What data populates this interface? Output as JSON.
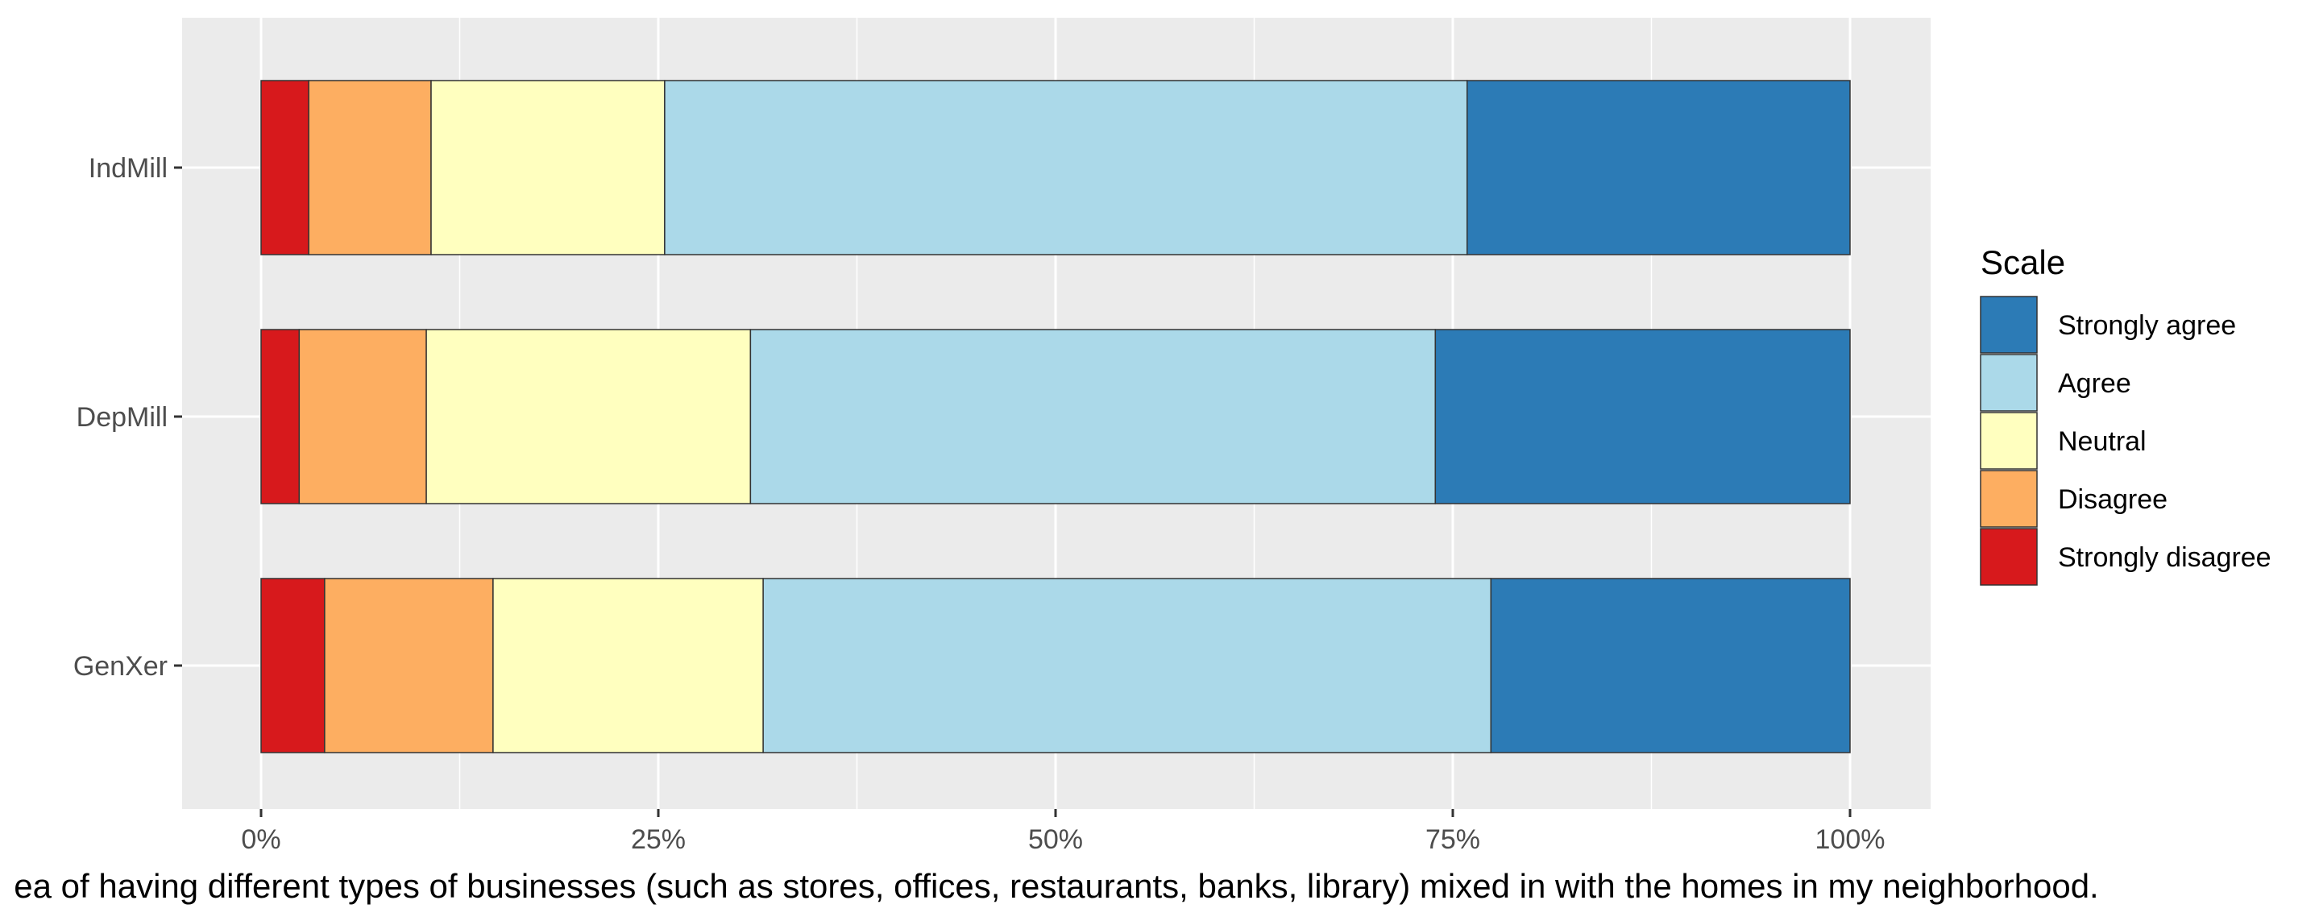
{
  "chart_data": {
    "type": "bar",
    "orientation": "horizontal",
    "stacked": true,
    "percent_scale": true,
    "title": "",
    "xlabel": "ea of having different types of businesses (such as stores, offices, restaurants, banks, library) mixed in with the homes in my neighborhood.",
    "ylabel": "",
    "xlim": [
      0,
      1
    ],
    "x_ticks": [
      0,
      0.25,
      0.5,
      0.75,
      1.0
    ],
    "x_tick_labels": [
      "0%",
      "25%",
      "50%",
      "75%",
      "100%"
    ],
    "categories": [
      "IndMill",
      "DepMill",
      "GenXer"
    ],
    "grid": true,
    "legend": {
      "title": "Scale",
      "position": "right",
      "order": [
        "Strongly agree",
        "Agree",
        "Neutral",
        "Disagree",
        "Strongly disagree"
      ]
    },
    "series": [
      {
        "name": "Strongly disagree",
        "color": "#d7191c",
        "values": [
          0.03,
          0.024,
          0.04
        ]
      },
      {
        "name": "Disagree",
        "color": "#fdae61",
        "values": [
          0.077,
          0.08,
          0.106
        ]
      },
      {
        "name": "Neutral",
        "color": "#ffffbf",
        "values": [
          0.147,
          0.204,
          0.17
        ]
      },
      {
        "name": "Agree",
        "color": "#abd9e9",
        "values": [
          0.505,
          0.431,
          0.458
        ]
      },
      {
        "name": "Strongly agree",
        "color": "#2c7bb6",
        "values": [
          0.241,
          0.261,
          0.226
        ]
      }
    ],
    "colors": {
      "panel_background": "#ebebeb",
      "grid_major": "#ffffff",
      "bar_outline": "#333333"
    }
  }
}
